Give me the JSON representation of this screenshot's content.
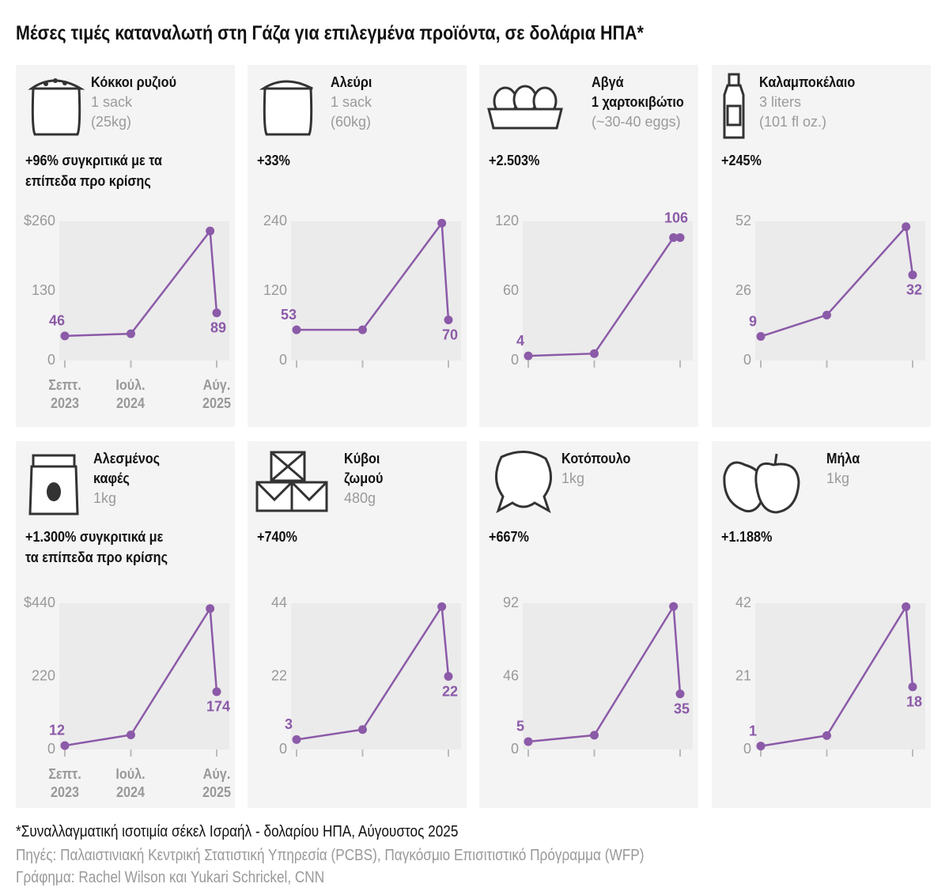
{
  "title": "Μέσες τιμές καταναλωτή στη Γάζα για επιλεγμένα προϊόντα, σε δολάρια ΗΠΑ*",
  "footnote": "*Συναλλαγματική ισοτιμία σέκελ Ισραήλ - δολαρίου ΗΠΑ, Αύγουστος 2025",
  "sources": "Πηγές: Παλαιστινιακή Κεντρική Στατιστική Υπηρεσία (PCBS), Παγκόσμιο Επισιτιστικό Πρόγραμμα (WFP)",
  "credit": "Γράφημα: Rachel Wilson και Yukari Schrickel, CNN",
  "chart_data": [
    {
      "type": "line",
      "title": "Κόκκοι ρυζιού",
      "notes": [
        "1 sack",
        "(25kg)"
      ],
      "annotation": "+96% συγκριτικά με τα επίπεδα προ κρίσης",
      "x": [
        "2023-09",
        "2024-07",
        "2025-07",
        "2025-08"
      ],
      "values": [
        46,
        50,
        242,
        89
      ],
      "color": "#8b5aa8",
      "ylim": [
        0,
        260
      ],
      "yticks": [
        0,
        130,
        {
          "value": 260,
          "label": "$260"
        }
      ],
      "xticks": [
        {
          "value": "2023-09",
          "label": "Σεπτ. 2023"
        },
        {
          "value": "2024-07",
          "label": "Ιούλ. 2024"
        },
        {
          "value": "2025-08",
          "label": "Αύγ. 2025"
        }
      ]
    },
    {
      "type": "line",
      "title": "Αλεύρι",
      "notes": [
        "1 sack",
        "(60kg)"
      ],
      "annotation": "+33%",
      "x": [
        "2023-09",
        "2024-07",
        "2025-07",
        "2025-08"
      ],
      "values": [
        53,
        53,
        237,
        70
      ],
      "color": "#8b5aa8",
      "ylim": [
        0,
        240
      ],
      "yticks": [
        0,
        120,
        240
      ],
      "xticks": [
        "2023-09",
        "2024-07",
        "2025-08"
      ]
    },
    {
      "type": "line",
      "title": "Αβγά",
      "subtitle": "1 χαρτοκιβώτιο",
      "notes": [
        "(~30-40 eggs)"
      ],
      "annotation": "+2.503%",
      "x": [
        "2023-09",
        "2024-07",
        "2025-07",
        "2025-08"
      ],
      "values": [
        4,
        6,
        106,
        106
      ],
      "color": "#8b5aa8",
      "ylim": [
        0,
        120
      ],
      "yticks": [
        0,
        60,
        120
      ],
      "xticks": [
        "2023-09",
        "2024-07",
        "2025-08"
      ]
    },
    {
      "type": "line",
      "title": "Καλαμποκέλαιο",
      "notes": [
        "3 liters",
        "(101 fl oz.)"
      ],
      "annotation": "+245%",
      "x": [
        "2023-09",
        "2024-07",
        "2025-07",
        "2025-08"
      ],
      "values": [
        9,
        17,
        50,
        32
      ],
      "color": "#8b5aa8",
      "ylim": [
        0,
        52
      ],
      "yticks": [
        0,
        26,
        52
      ],
      "xticks": [
        "2023-09",
        "2024-07",
        "2025-08"
      ]
    },
    {
      "type": "line",
      "title": "Αλεσμένος καφές",
      "notes": [
        "1kg"
      ],
      "annotation": "+1.300% συγκριτικά με τα επίπεδα προ κρίσης",
      "x": [
        "2023-09",
        "2024-07",
        "2025-07",
        "2025-08"
      ],
      "values": [
        12,
        44,
        424,
        174
      ],
      "color": "#8b5aa8",
      "ylim": [
        0,
        440
      ],
      "yticks": [
        0,
        220,
        {
          "value": 440,
          "label": "$440"
        }
      ],
      "xticks": [
        {
          "value": "2023-09",
          "label": "Σεπτ. 2023"
        },
        {
          "value": "2024-07",
          "label": "Ιούλ. 2024"
        },
        {
          "value": "2025-08",
          "label": "Αύγ. 2025"
        }
      ]
    },
    {
      "type": "line",
      "title": "Κύβοι ζωμού",
      "notes": [
        "480g"
      ],
      "annotation": "+740%",
      "x": [
        "2023-09",
        "2024-07",
        "2025-07",
        "2025-08"
      ],
      "values": [
        3,
        6,
        43,
        22
      ],
      "color": "#8b5aa8",
      "ylim": [
        0,
        44
      ],
      "yticks": [
        0,
        22,
        44
      ],
      "xticks": [
        "2023-09",
        "2024-07",
        "2025-08"
      ]
    },
    {
      "type": "line",
      "title": "Κοτόπουλο",
      "notes": [
        "1kg"
      ],
      "annotation": "+667%",
      "x": [
        "2023-09",
        "2024-07",
        "2025-07",
        "2025-08"
      ],
      "values": [
        5,
        9,
        90,
        35
      ],
      "color": "#8b5aa8",
      "ylim": [
        0,
        92
      ],
      "yticks": [
        0,
        46,
        92
      ],
      "xticks": [
        "2023-09",
        "2024-07",
        "2025-08"
      ]
    },
    {
      "type": "line",
      "title": "Μήλα",
      "notes": [
        "1kg"
      ],
      "annotation": "+1.188%",
      "x": [
        "2023-09",
        "2024-07",
        "2025-07",
        "2025-08"
      ],
      "values": [
        1,
        4,
        41,
        18
      ],
      "color": "#8b5aa8",
      "ylim": [
        0,
        42
      ],
      "yticks": [
        0,
        21,
        42
      ],
      "xticks": [
        "2023-09",
        "2024-07",
        "2025-08"
      ]
    }
  ]
}
